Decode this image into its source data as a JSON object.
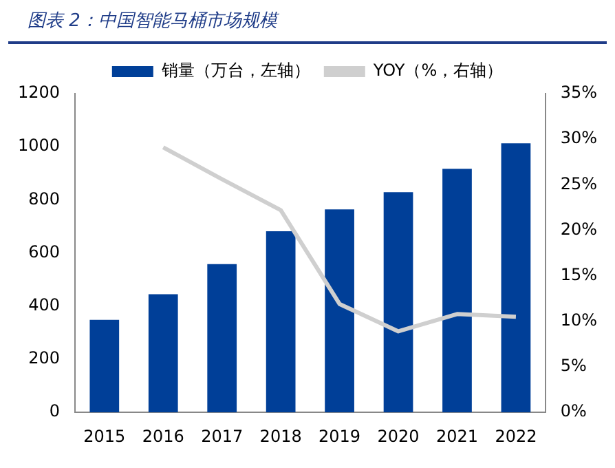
{
  "chart_data": {
    "type": "bar",
    "title": "图表 2：中国智能马桶市场规模",
    "categories": [
      "2015",
      "2016",
      "2017",
      "2018",
      "2019",
      "2020",
      "2021",
      "2022"
    ],
    "series": [
      {
        "name": "销量（万台，左轴）",
        "color": "#003f98",
        "values": [
          348,
          445,
          558,
          682,
          764,
          829,
          917,
          1013
        ]
      },
      {
        "name": "YOY（%，右轴）",
        "type": "line",
        "axis": "y2",
        "color": "#cfcfcf",
        "values": [
          null,
          29.1,
          25.6,
          22.2,
          11.9,
          8.9,
          10.8,
          10.5
        ]
      }
    ],
    "ylim": [
      0,
      1200
    ],
    "yticks": [
      0,
      200,
      400,
      600,
      800,
      1000,
      1200
    ],
    "y2lim": [
      0,
      35
    ],
    "y2ticks": [
      {
        "value": 0,
        "label": "0%"
      },
      {
        "value": 5,
        "label": "5%"
      },
      {
        "value": 10,
        "label": "10%"
      },
      {
        "value": 15,
        "label": "15%"
      },
      {
        "value": 20,
        "label": "20%"
      },
      {
        "value": 25,
        "label": "25%"
      },
      {
        "value": 30,
        "label": "30%"
      },
      {
        "value": 35,
        "label": "35%"
      }
    ],
    "grid": false,
    "legend": "top",
    "marker": "none"
  }
}
